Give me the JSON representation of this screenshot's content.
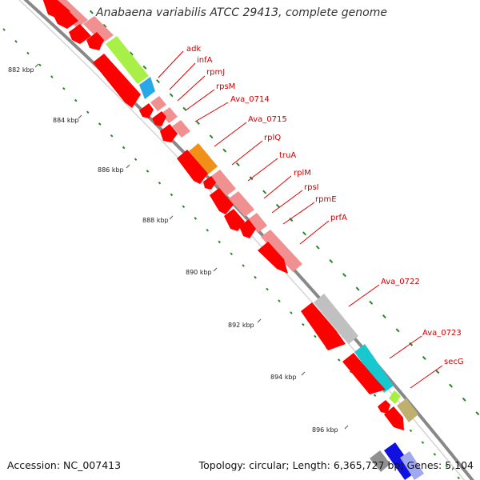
{
  "title": "Anabaena variabilis ATCC 29413, complete genome",
  "footer": {
    "accession": "Accession: NC_007413",
    "summary": "Topology: circular; Length: 6,365,727 bp; Genes: 5,104"
  },
  "kbp_labels": [
    "882 kbp",
    "884 kbp",
    "886 kbp",
    "888 kbp",
    "890 kbp",
    "892 kbp",
    "894 kbp",
    "896 kbp"
  ],
  "gene_labels": [
    "adk",
    "infA",
    "rpmJ",
    "rpsM",
    "Ava_0714",
    "Ava_0715",
    "rplQ",
    "truA",
    "rplM",
    "rpsI",
    "rpmE",
    "prfA",
    "Ava_0722",
    "Ava_0723",
    "secG"
  ],
  "colors": {
    "cds_forward": "#ff0000",
    "cds_shaded": "#f09090",
    "backbone": "#888888",
    "gc_ticks": "#228822",
    "label_text": "#cc0000",
    "cog_green": "#a8f048",
    "cog_blue": "#28a8e8",
    "cog_orange": "#f09018",
    "cog_gray": "#c0c0c0",
    "cog_cyan": "#18c8d0",
    "cog_olive": "#c0b070",
    "cog_lime": "#a8f040",
    "cog_darkgray": "#909090",
    "cog_deepblue": "#1010e0"
  }
}
